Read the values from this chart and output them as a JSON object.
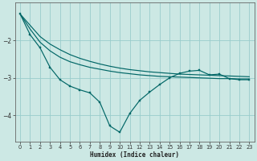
{
  "xlabel": "Humidex (Indice chaleur)",
  "background_color": "#cce8e4",
  "grid_color": "#99cccc",
  "line_color": "#006666",
  "xlim": [
    -0.5,
    23.5
  ],
  "ylim": [
    -4.7,
    -1.0
  ],
  "yticks": [
    -4,
    -3,
    -2
  ],
  "xticks": [
    0,
    1,
    2,
    3,
    4,
    5,
    6,
    7,
    8,
    9,
    10,
    11,
    12,
    13,
    14,
    15,
    16,
    17,
    18,
    19,
    20,
    21,
    22,
    23
  ],
  "x": [
    0,
    1,
    2,
    3,
    4,
    5,
    6,
    7,
    8,
    9,
    10,
    11,
    12,
    13,
    14,
    15,
    16,
    17,
    18,
    19,
    20,
    21,
    22,
    23
  ],
  "line_smooth1": [
    -1.3,
    -1.6,
    -1.9,
    -2.1,
    -2.25,
    -2.38,
    -2.48,
    -2.56,
    -2.63,
    -2.69,
    -2.74,
    -2.78,
    -2.81,
    -2.84,
    -2.86,
    -2.88,
    -2.9,
    -2.91,
    -2.92,
    -2.93,
    -2.94,
    -2.95,
    -2.96,
    -2.97
  ],
  "line_smooth2": [
    -1.3,
    -1.7,
    -2.05,
    -2.28,
    -2.45,
    -2.57,
    -2.65,
    -2.72,
    -2.77,
    -2.82,
    -2.86,
    -2.89,
    -2.92,
    -2.94,
    -2.96,
    -2.97,
    -2.98,
    -2.99,
    -3.0,
    -3.01,
    -3.02,
    -3.02,
    -3.03,
    -3.03
  ],
  "line_zigzag": [
    -1.3,
    -1.85,
    -2.2,
    -2.72,
    -3.05,
    -3.22,
    -3.32,
    -3.4,
    -3.65,
    -4.28,
    -4.45,
    -3.95,
    -3.6,
    -3.38,
    -3.18,
    -3.0,
    -2.88,
    -2.82,
    -2.8,
    -2.92,
    -2.9,
    -3.02,
    -3.05,
    -3.05
  ]
}
